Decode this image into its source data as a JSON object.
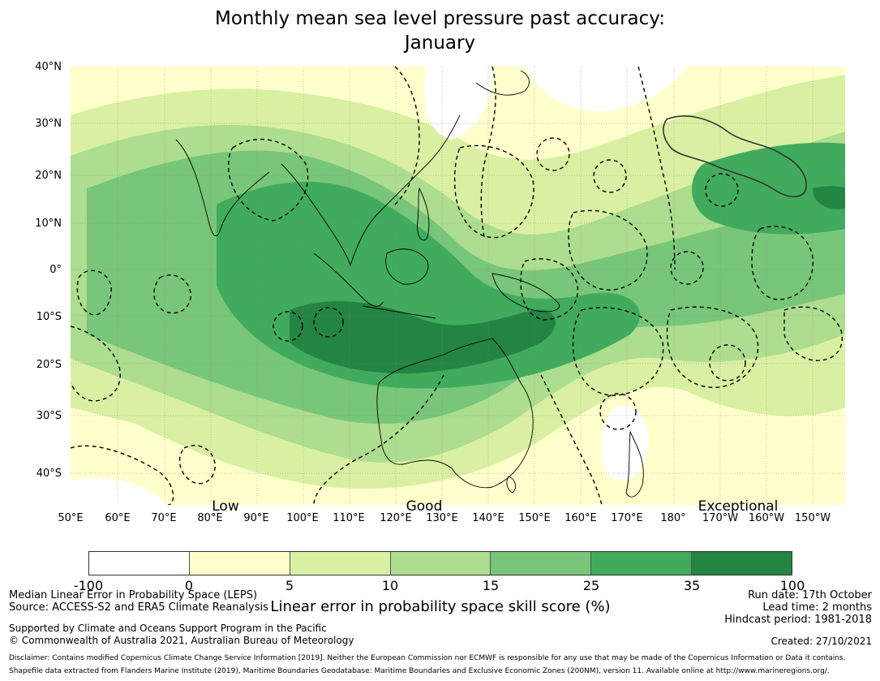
{
  "title_line1": "Monthly mean sea level pressure past accuracy:",
  "title_line2": "January",
  "latitudes": [
    "40°N",
    "30°N",
    "20°N",
    "10°N",
    "0°",
    "10°S",
    "20°S",
    "30°S",
    "40°S"
  ],
  "longitudes": [
    "50°E",
    "60°E",
    "70°E",
    "80°E",
    "90°E",
    "100°E",
    "110°E",
    "120°E",
    "130°E",
    "140°E",
    "150°E",
    "160°E",
    "170°E",
    "180°",
    "170°W",
    "160°W",
    "150°W"
  ],
  "categories": [
    "Low",
    "Good",
    "Exceptional"
  ],
  "colorbar": {
    "colors": [
      "#ffffff",
      "#ffffcc",
      "#d9f0a3",
      "#addd8e",
      "#78c679",
      "#41ab5d",
      "#238443"
    ],
    "ticks": [
      "-100",
      "0",
      "5",
      "10",
      "15",
      "25",
      "35",
      "100"
    ],
    "label": "Linear error in probability space skill score (%)"
  },
  "footer": {
    "metric": "Median Linear Error in Probability Space (LEPS)",
    "source": "Source: ACCESS-S2 and ERA5 Climate Reanalysis",
    "run_date": "Run date: 17th October",
    "lead_time": "Lead time: 2 months",
    "hindcast": "Hindcast period: 1981-2018",
    "support": "Supported by Climate and Oceans Support Program in the Pacific",
    "copyright": "© Commonwealth of Australia 2021, Australian Bureau of Meteorology",
    "created": "Created: 27/10/2021",
    "disclaimer": "Disclaimer: Contains modified Copernicus Climate Change Service Information [2019]. Neither the European Commission nor ECMWF is responsible for any use that may be made of the Copernicus Information or Data it contains.",
    "shapefile": "Shapefile data extracted from Flanders Marine Institute (2019), Maritime Boundaries Geodatabase: Maritime Boundaries and Exclusive Economic Zones (200NM), version 11. Available online at http://www.marineregions.org/."
  }
}
